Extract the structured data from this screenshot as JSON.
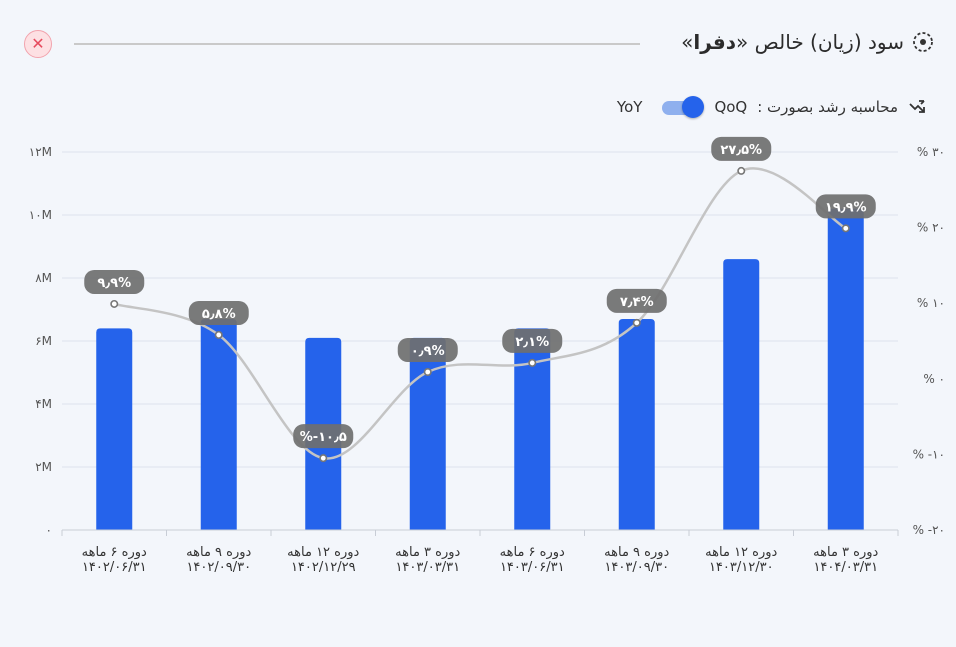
{
  "header": {
    "title_prefix": "سود (زیان) خالص «",
    "title_brand": "دفرا",
    "title_suffix": "»"
  },
  "toggle": {
    "label": "محاسبه رشد بصورت :",
    "option_on": "QoQ",
    "option_off": "YoY",
    "selected": "QoQ"
  },
  "colors": {
    "bar": "#2563eb",
    "line": "#c4c4c4",
    "bubble": "#6f6f6f",
    "close": "#e64a5e"
  },
  "chart_data": {
    "type": "bar",
    "categories": [
      [
        "دوره ۶ ماهه",
        "۱۴۰۲/۰۶/۳۱"
      ],
      [
        "دوره ۹ ماهه",
        "۱۴۰۲/۰۹/۳۰"
      ],
      [
        "دوره ۱۲ ماهه",
        "۱۴۰۲/۱۲/۲۹"
      ],
      [
        "دوره ۳ ماهه",
        "۱۴۰۳/۰۳/۳۱"
      ],
      [
        "دوره ۶ ماهه",
        "۱۴۰۳/۰۶/۳۱"
      ],
      [
        "دوره ۹ ماهه",
        "۱۴۰۳/۰۹/۳۰"
      ],
      [
        "دوره ۱۲ ماهه",
        "۱۴۰۳/۱۲/۳۰"
      ],
      [
        "دوره ۳ ماهه",
        "۱۴۰۴/۰۳/۳۱"
      ]
    ],
    "series": [
      {
        "type": "bar",
        "axis": "left",
        "values": [
          6.4,
          6.7,
          6.1,
          6.1,
          6.4,
          6.7,
          8.6,
          10.2
        ]
      },
      {
        "type": "line",
        "axis": "right",
        "values": [
          9.9,
          5.8,
          -10.5,
          0.9,
          2.1,
          7.4,
          27.5,
          19.9
        ],
        "labels": [
          "۹٫۹%",
          "۵٫۸%",
          "%-۱۰٫۵",
          "۰٫۹%",
          "۲٫۱%",
          "۷٫۴%",
          "۲۷٫۵%",
          "۱۹٫۹%"
        ]
      }
    ],
    "y_left": {
      "ylim": [
        0,
        12
      ],
      "ticks": [
        0,
        2,
        4,
        6,
        8,
        10,
        12
      ],
      "tick_labels": [
        "۰",
        "۲M",
        "۴M",
        "۶M",
        "۸M",
        "۱۰M",
        "۱۲M"
      ]
    },
    "y_right": {
      "ylim": [
        -20,
        30
      ],
      "ticks": [
        -20,
        -10,
        0,
        10,
        20,
        30
      ],
      "tick_labels": [
        "% -۲۰",
        "% -۱۰",
        "% ۰",
        "% ۱۰",
        "% ۲۰",
        "% ۳۰"
      ]
    },
    "grid": true
  }
}
